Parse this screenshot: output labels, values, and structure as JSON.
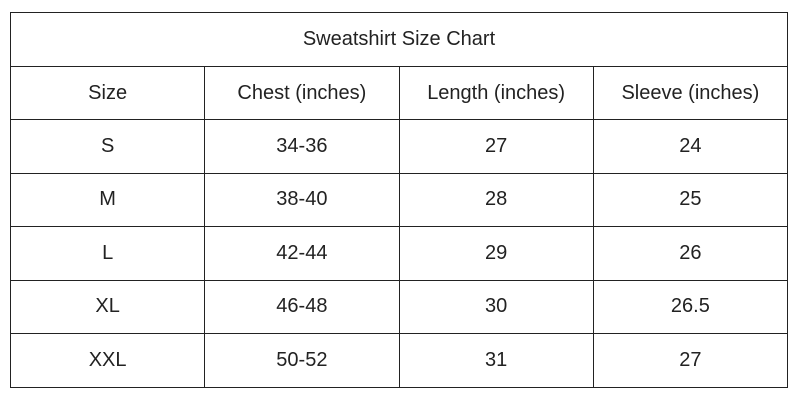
{
  "table": {
    "title": "Sweatshirt Size Chart",
    "columns": [
      "Size",
      "Chest (inches)",
      "Length (inches)",
      "Sleeve (inches)"
    ],
    "rows": [
      [
        "S",
        "34-36",
        "27",
        "24"
      ],
      [
        "M",
        "38-40",
        "28",
        "25"
      ],
      [
        "L",
        "42-44",
        "29",
        "26"
      ],
      [
        "XL",
        "46-48",
        "30",
        "26.5"
      ],
      [
        "XXL",
        "50-52",
        "31",
        "27"
      ]
    ]
  }
}
